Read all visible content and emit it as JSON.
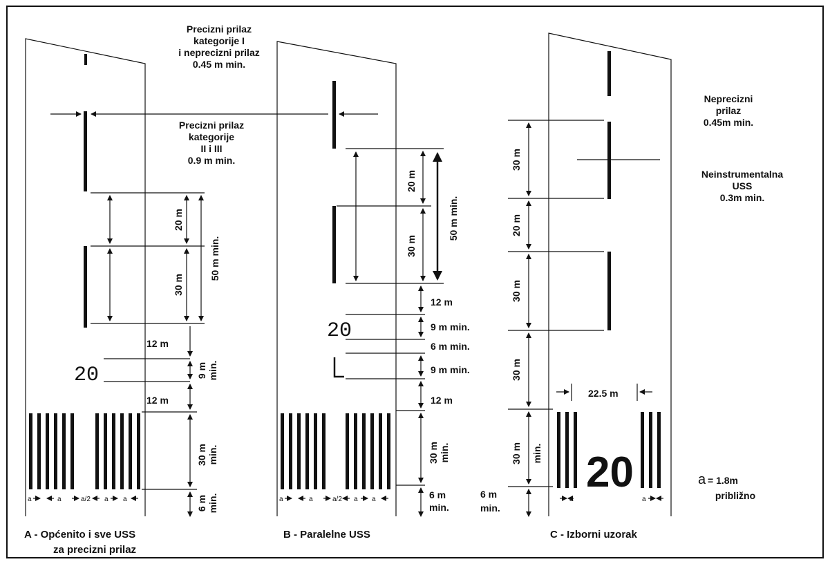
{
  "colors": {
    "ink": "#111111",
    "paper": "#ffffff"
  },
  "panels": {
    "a": {
      "caption_line1": "A - Općenito i sve USS",
      "caption_line2": "za precizni prilaz",
      "dim_20m": "20 m",
      "dim_30m": "30 m",
      "dim_50m": "50 m min.",
      "dim_12m_1": "12 m",
      "dim_9m_a": "9 m",
      "dim_9m_b": "min.",
      "dim_12m_2": "12 m",
      "dim_30m_min_a": "30 m",
      "dim_30m_min_b": "min.",
      "dim_6m_a": "6 m",
      "dim_6m_b": "min.",
      "number": "20",
      "spacing_letters": "a",
      "spacing_letter_half": "a/2"
    },
    "b": {
      "caption": "B - Paralelne USS",
      "dim_20m": "20 m",
      "dim_30m": "30 m",
      "dim_50m": "50 m min.",
      "dim_12m_1": "12 m",
      "dim_9m_1": "9 m min.",
      "dim_6m": "6 m min.",
      "dim_9m_2": "9 m min.",
      "dim_12m_2": "12 m",
      "dim_30m_min_a": "30 m",
      "dim_30m_min_b": "min.",
      "dim_6m_a": "6 m",
      "dim_6m_b": "min.",
      "number": "20",
      "letter": "L",
      "spacing_letters": "a",
      "spacing_letter_half": "a/2"
    },
    "c": {
      "caption": "C - Izborni uzorak",
      "dim_30m_1": "30 m",
      "dim_20m": "20 m",
      "dim_30m_2": "30 m",
      "dim_30m_3": "30 m",
      "dim_30m_min_a": "30 m",
      "dim_30m_min_b": "min.",
      "dim_6m_a": "6 m",
      "dim_6m_b": "min.",
      "width_dim": "22.5 m",
      "number": "20",
      "spacing_letters": "a"
    }
  },
  "labels": {
    "precise_cat1_line1": "Precizni prilaz",
    "precise_cat1_line2": "kategorije I",
    "precise_cat1_line3": "i neprecizni prilaz",
    "precise_cat1_line4": "0.45 m min.",
    "precise_cat23_line1": "Precizni prilaz",
    "precise_cat23_line2": "kategorije",
    "precise_cat23_line3": "II i III",
    "precise_cat23_line4": "0.9 m min.",
    "nonprecise_line1": "Neprecizni",
    "nonprecise_line2": "prilaz",
    "nonprecise_line3": "0.45m min.",
    "noninstr_line1": "Neinstrumentalna",
    "noninstr_line2": "USS",
    "noninstr_line3": "0.3m min.",
    "a_symbol": "a",
    "a_value": "= 1.8m",
    "a_note": "približno"
  }
}
